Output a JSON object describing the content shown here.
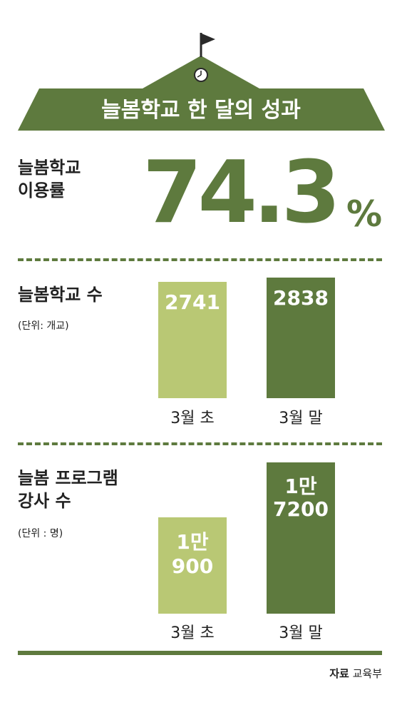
{
  "header": {
    "title": "늘봄학교 한 달의 성과"
  },
  "usage": {
    "label_line1": "늘봄학교",
    "label_line2": "이용률",
    "value": "74.3",
    "unit": "%"
  },
  "colors": {
    "primary": "#5e7a3e",
    "light": "#b9c874",
    "icons": [
      "flag-icon",
      "clock-icon"
    ]
  },
  "chart_data": [
    {
      "type": "bar",
      "title": "늘봄학교 수",
      "unit_note": "(단위: 개교)",
      "categories": [
        "3월 초",
        "3월 말"
      ],
      "values": [
        2741,
        2838
      ],
      "value_labels": [
        "2741",
        "2838"
      ],
      "ylim": [
        0,
        3200
      ]
    },
    {
      "type": "bar",
      "title_line1": "늘봄 프로그램",
      "title_line2": "강사 수",
      "unit_note": "(단위 : 명)",
      "categories": [
        "3월 초",
        "3월 말"
      ],
      "values": [
        10900,
        17200
      ],
      "value_labels": [
        [
          "1만",
          "900"
        ],
        [
          "1만",
          "7200"
        ]
      ],
      "ylim": [
        0,
        18300
      ]
    }
  ],
  "footer": {
    "source_label": "자료",
    "source_name": "교육부"
  }
}
